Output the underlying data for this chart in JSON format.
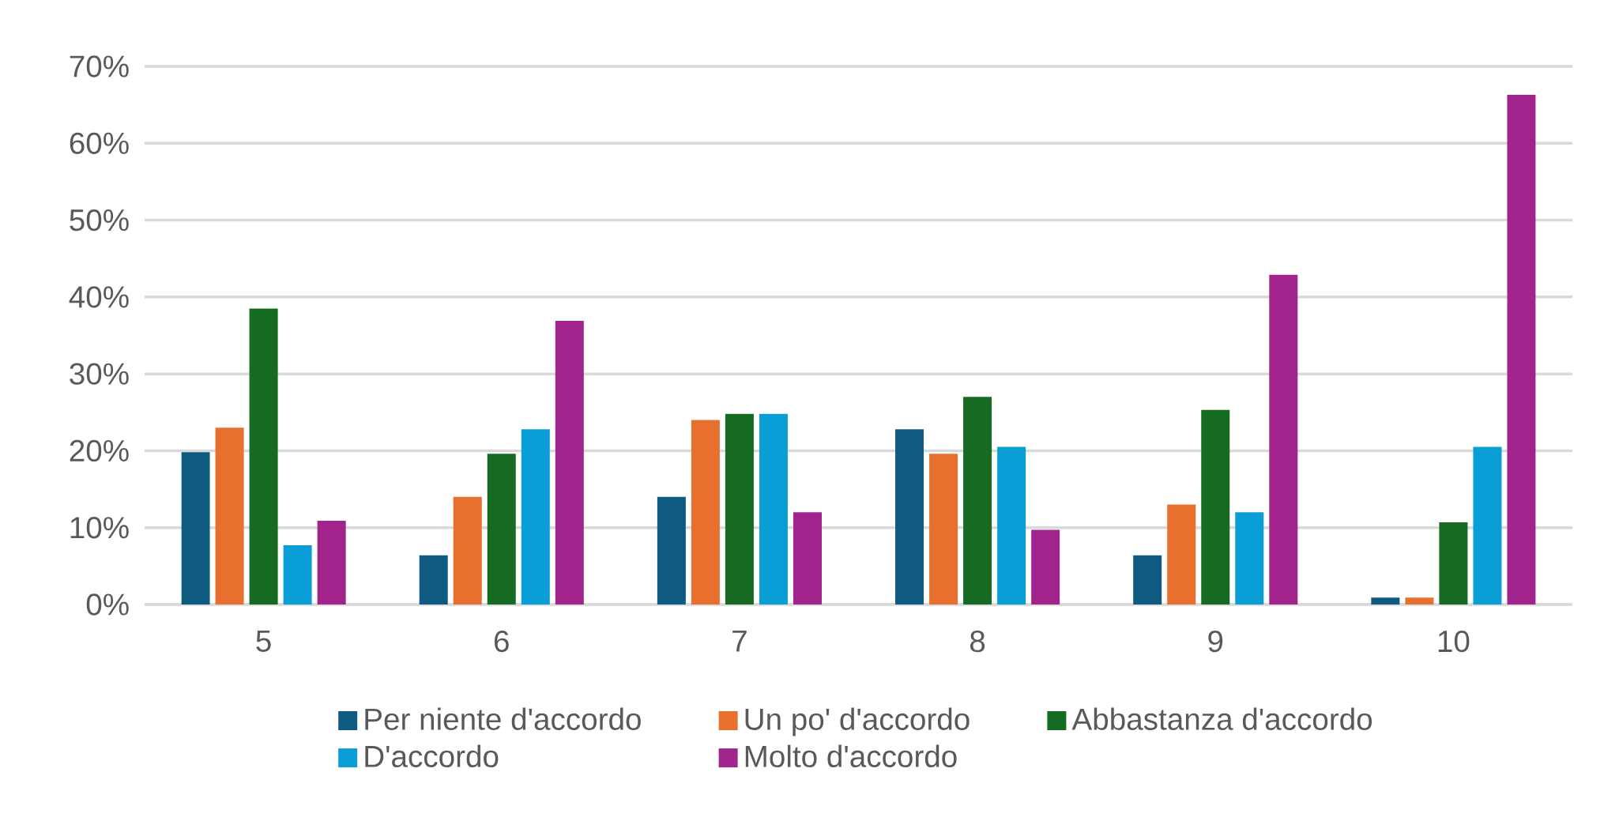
{
  "chart_data": {
    "type": "bar",
    "categories": [
      "5",
      "6",
      "7",
      "8",
      "9",
      "10"
    ],
    "series": [
      {
        "name": "Per niente d'accordo",
        "color": "#0e5a80",
        "values": [
          19.8,
          6.4,
          14.0,
          22.8,
          6.4,
          0.9
        ]
      },
      {
        "name": "Un po' d'accordo",
        "color": "#e8702f",
        "values": [
          23.0,
          14.0,
          24.0,
          19.6,
          13.0,
          0.9
        ]
      },
      {
        "name": "Abbastanza d'accordo",
        "color": "#156b22",
        "values": [
          38.5,
          19.6,
          24.8,
          27.0,
          25.3,
          10.7
        ]
      },
      {
        "name": "D'accordo",
        "color": "#0a9ed6",
        "values": [
          7.7,
          22.8,
          24.8,
          20.5,
          12.0,
          20.5
        ]
      },
      {
        "name": "Molto d'accordo",
        "color": "#a0248c",
        "values": [
          10.9,
          36.9,
          12.0,
          9.7,
          42.9,
          66.3
        ]
      }
    ],
    "ylim": [
      0,
      70
    ],
    "yticks": [
      {
        "value": 0,
        "label": "0%"
      },
      {
        "value": 10,
        "label": "10%"
      },
      {
        "value": 20,
        "label": "20%"
      },
      {
        "value": 30,
        "label": "30%"
      },
      {
        "value": 40,
        "label": "40%"
      },
      {
        "value": 50,
        "label": "50%"
      },
      {
        "value": 60,
        "label": "60%"
      },
      {
        "value": 70,
        "label": "70%"
      }
    ],
    "grid": "y",
    "legend": "bottom"
  }
}
